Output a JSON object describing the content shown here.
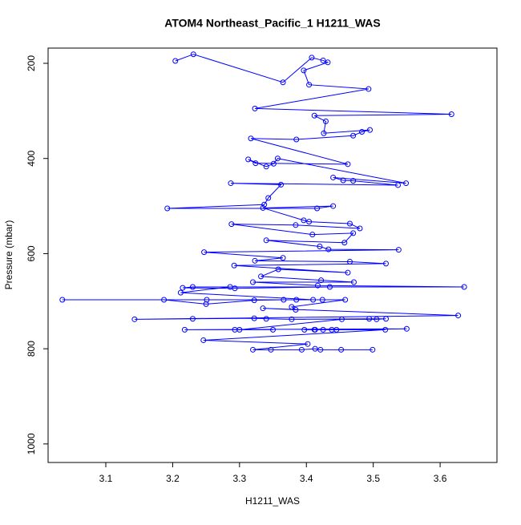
{
  "chart_data": {
    "type": "line",
    "title": "ATOM4 Northeast_Pacific_1 H1211_WAS",
    "xlabel": "H1211_WAS",
    "ylabel": "Pressure (mbar)",
    "color": "#0000ff",
    "markers": true,
    "xlim": [
      3.0137,
      3.685
    ],
    "ylim": [
      1039,
      168
    ],
    "xticks": [
      3.1,
      3.2,
      3.3,
      3.4,
      3.5,
      3.6
    ],
    "yticks": [
      200,
      400,
      600,
      800,
      1000
    ],
    "x": [
      3.204,
      3.231,
      3.365,
      3.408,
      3.425,
      3.432,
      3.396,
      3.404,
      3.493,
      3.323,
      3.617,
      3.412,
      3.429,
      3.426,
      3.495,
      3.483,
      3.47,
      3.385,
      3.317,
      3.462,
      3.324,
      3.313,
      3.34,
      3.351,
      3.357,
      3.549,
      3.44,
      3.455,
      3.47,
      3.537,
      3.287,
      3.362,
      3.343,
      3.337,
      3.192,
      3.416,
      3.44,
      3.335,
      3.396,
      3.404,
      3.465,
      3.48,
      3.384,
      3.288,
      3.409,
      3.47,
      3.457,
      3.34,
      3.42,
      3.433,
      3.538,
      3.247,
      3.365,
      3.323,
      3.465,
      3.519,
      3.292,
      3.462,
      3.358,
      3.332,
      3.422,
      3.471,
      3.32,
      3.417,
      3.636,
      3.23,
      3.215,
      3.293,
      3.435,
      3.286,
      3.212,
      3.41,
      3.251,
      3.035,
      3.187,
      3.25,
      3.322,
      3.366,
      3.385,
      3.424,
      3.458,
      3.378,
      3.384,
      3.335,
      3.627,
      3.143,
      3.23,
      3.322,
      3.34,
      3.378,
      3.494,
      3.519,
      3.505,
      3.453,
      3.3,
      3.293,
      3.35,
      3.218,
      3.55,
      3.445,
      3.438,
      3.425,
      3.412,
      3.397,
      3.413,
      3.518,
      3.246,
      3.402,
      3.32,
      3.347,
      3.393,
      3.413,
      3.421,
      3.452,
      3.499
    ],
    "values": [
      195,
      181,
      240,
      188,
      194,
      198,
      215,
      245,
      254,
      295,
      307,
      310,
      322,
      347,
      340,
      344,
      352,
      360,
      358,
      412,
      410,
      402,
      417,
      411,
      400,
      452,
      440,
      446,
      447,
      456,
      452,
      455,
      483,
      497,
      505,
      505,
      500,
      504,
      530,
      533,
      537,
      547,
      540,
      538,
      560,
      557,
      577,
      572,
      585,
      591,
      592,
      597,
      609,
      615,
      617,
      621,
      625,
      640,
      633,
      648,
      656,
      660,
      660,
      667,
      670,
      670,
      672,
      673,
      670,
      670,
      682,
      697,
      697,
      697,
      697,
      706,
      698,
      697,
      697,
      697,
      697,
      712,
      718,
      715,
      730,
      738,
      737,
      736,
      737,
      738,
      737,
      737,
      738,
      738,
      760,
      760,
      760,
      760,
      758,
      760,
      760,
      760,
      760,
      760,
      760,
      760,
      782,
      790,
      802,
      802,
      802,
      800,
      802,
      802,
      802
    ]
  }
}
